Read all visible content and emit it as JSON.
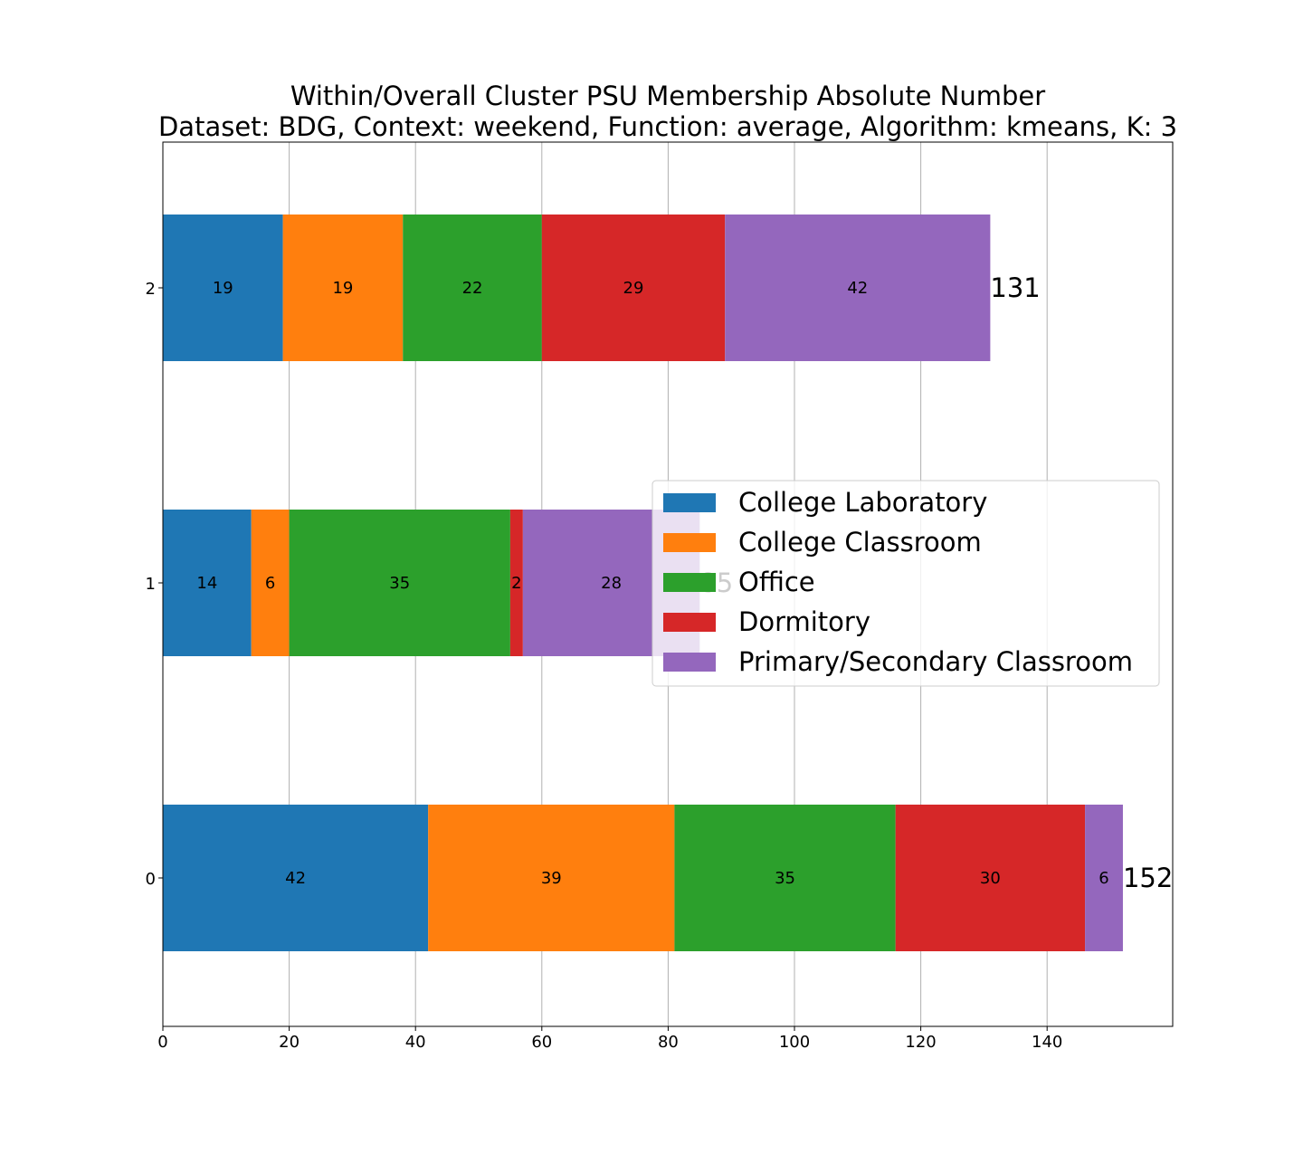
{
  "chart_data": {
    "type": "bar",
    "orientation": "horizontal",
    "stacked": true,
    "title": [
      "Within/Overall Cluster PSU Membership Absolute Number",
      "Dataset: BDG, Context: weekend, Function: average, Algorithm: kmeans, K: 3"
    ],
    "xlabel": "",
    "ylabel": "",
    "categories": [
      "0",
      "1",
      "2"
    ],
    "xlim": [
      0,
      160
    ],
    "xticks": [
      0,
      20,
      40,
      60,
      80,
      100,
      120,
      140
    ],
    "grid": "x",
    "legend_position": "center-right",
    "series": [
      {
        "name": "College Laboratory",
        "color": "#1f77b4",
        "values": [
          42,
          14,
          19
        ]
      },
      {
        "name": "College Classroom",
        "color": "#ff7f0e",
        "values": [
          39,
          6,
          19
        ]
      },
      {
        "name": "Office",
        "color": "#2ca02c",
        "values": [
          35,
          35,
          22
        ]
      },
      {
        "name": "Dormitory",
        "color": "#d62728",
        "values": [
          30,
          2,
          29
        ]
      },
      {
        "name": "Primary/Secondary Classroom",
        "color": "#9467bd",
        "values": [
          6,
          28,
          42
        ]
      }
    ],
    "totals": [
      152,
      85,
      131
    ]
  }
}
